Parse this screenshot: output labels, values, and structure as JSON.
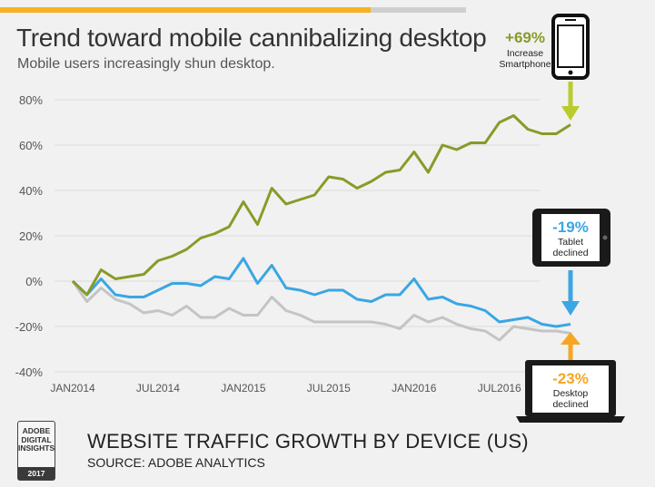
{
  "header": {
    "title": "Trend toward mobile cannibalizing desktop",
    "subtitle": "Mobile users increasingly shun desktop."
  },
  "colors": {
    "smartphone": "#8a9a28",
    "tablet": "#3aa6e4",
    "desktop": "#c4c4c4",
    "smartphone_arrow": "#b9cc2b",
    "tablet_arrow": "#3aa6e4",
    "desktop_arrow": "#f6a623",
    "accent_bar": "#f6b221"
  },
  "annotations": {
    "smartphone": {
      "pct": "+69%",
      "line1": "Increase",
      "line2": "Smartphone",
      "icon": "smartphone-icon"
    },
    "tablet": {
      "pct": "-19%",
      "line1": "Tablet",
      "line2": "declined",
      "icon": "tablet-icon"
    },
    "desktop": {
      "pct": "-23%",
      "line1": "Desktop",
      "line2": "declined",
      "icon": "laptop-icon"
    }
  },
  "chart_data": {
    "type": "line",
    "title": "Website traffic growth by device (US)",
    "xlabel": "",
    "ylabel": "",
    "ylim": [
      -40,
      80
    ],
    "yticks": [
      "80%",
      "60%",
      "40%",
      "20%",
      "0%",
      "-20%",
      "-40%"
    ],
    "ytick_values": [
      80,
      60,
      40,
      20,
      0,
      -20,
      -40
    ],
    "xtick_labels": [
      "JAN2014",
      "JUL2014",
      "JAN2015",
      "JUL2015",
      "JAN2016",
      "JUL2016"
    ],
    "xtick_indices": [
      0,
      6,
      12,
      18,
      24,
      30
    ],
    "series": [
      {
        "name": "Smartphone",
        "values": [
          0,
          -6,
          5,
          1,
          2,
          3,
          9,
          11,
          14,
          19,
          21,
          24,
          35,
          25,
          41,
          34,
          36,
          38,
          46,
          45,
          41,
          44,
          48,
          49,
          57,
          48,
          60,
          58,
          61,
          61,
          70,
          73,
          67,
          65,
          65,
          69
        ]
      },
      {
        "name": "Tablet",
        "values": [
          0,
          -6,
          1,
          -6,
          -7,
          -7,
          -4,
          -1,
          -1,
          -2,
          2,
          1,
          10,
          -1,
          7,
          -3,
          -4,
          -6,
          -4,
          -4,
          -8,
          -9,
          -6,
          -6,
          1,
          -8,
          -7,
          -10,
          -11,
          -13,
          -18,
          -17,
          -16,
          -19,
          -20,
          -19
        ]
      },
      {
        "name": "Desktop",
        "values": [
          0,
          -9,
          -3,
          -8,
          -10,
          -14,
          -13,
          -15,
          -11,
          -16,
          -16,
          -12,
          -15,
          -15,
          -7,
          -13,
          -15,
          -18,
          -18,
          -18,
          -18,
          -18,
          -19,
          -21,
          -15,
          -18,
          -16,
          -19,
          -21,
          -22,
          -26,
          -20,
          -21,
          -22,
          -22,
          -23
        ]
      }
    ],
    "legend": "annotations right",
    "grid": true,
    "source": "SOURCE: ADOBE ANALYTICS"
  },
  "footer": {
    "badge_line1": "ADOBE",
    "badge_line2": "DIGITAL",
    "badge_line3": "INSIGHTS",
    "badge_year": "2017",
    "title": "WEBSITE TRAFFIC GROWTH BY DEVICE (US)",
    "source": "SOURCE: ADOBE ANALYTICS"
  }
}
